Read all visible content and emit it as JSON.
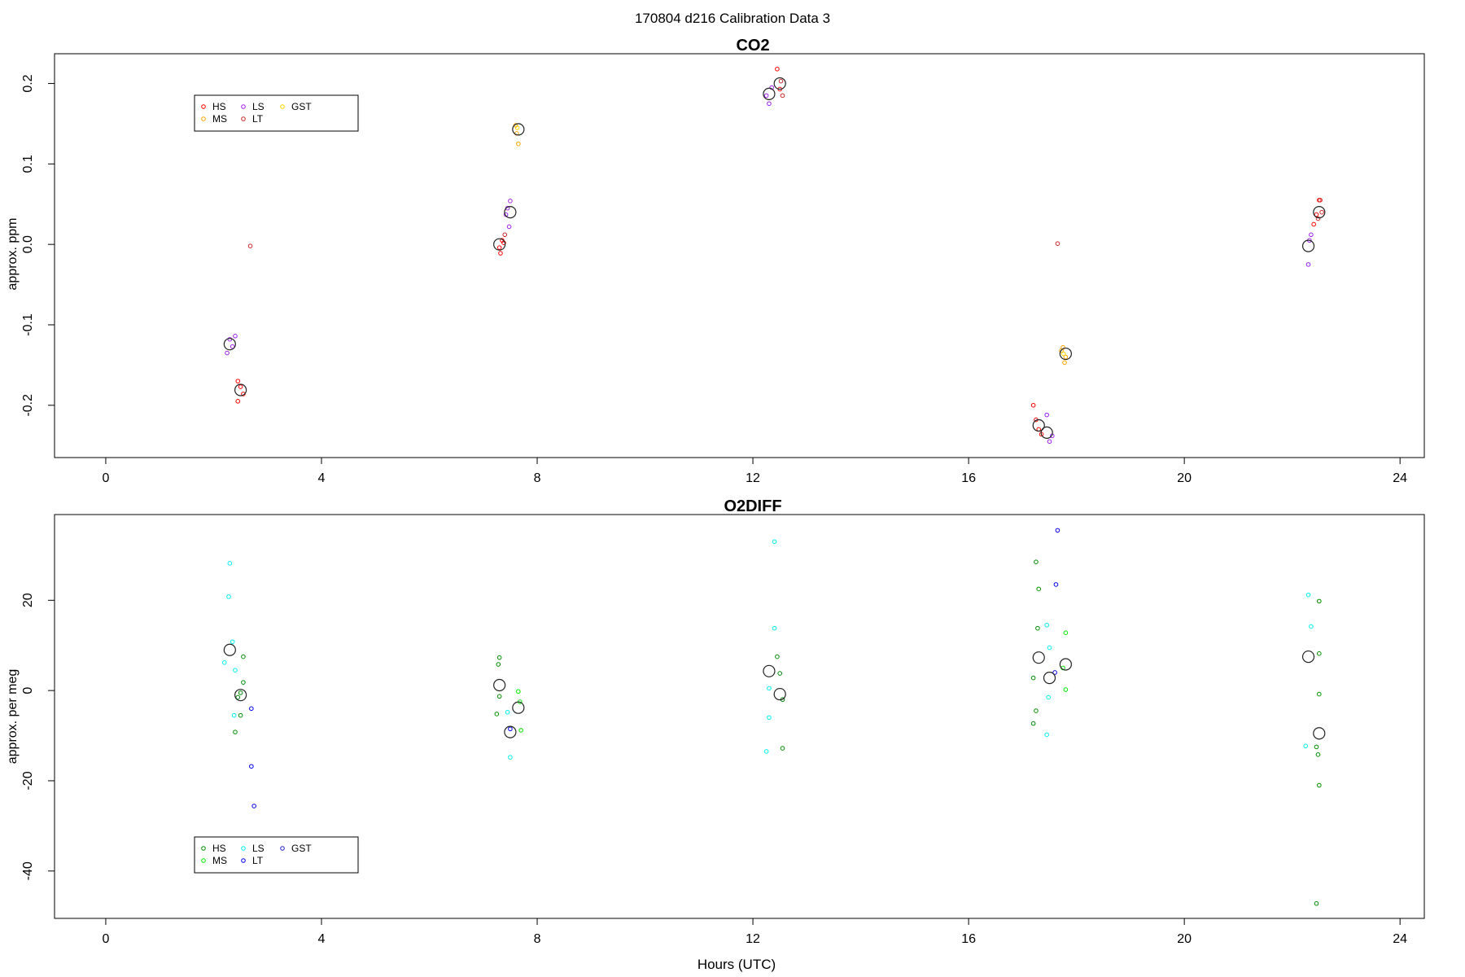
{
  "figure": {
    "title": "170804   d216   Calibration Data 3",
    "xlabel": "Hours (UTC)"
  },
  "chart_data": [
    {
      "type": "scatter",
      "title": "CO2",
      "xlabel": "",
      "ylabel": "approx. ppm",
      "xlim": [
        -0.95,
        24.45
      ],
      "ylim": [
        -0.265,
        0.237
      ],
      "xticks": [
        0,
        4,
        8,
        12,
        16,
        20,
        24
      ],
      "yticks": [
        -0.2,
        -0.1,
        0.0,
        0.1,
        0.2
      ],
      "ytick_labels": [
        "-0.2",
        "-0.1",
        "0.0",
        "0.1",
        "0.2"
      ],
      "legend_position": "top-left",
      "series": [
        {
          "name": "HS",
          "color": "#ff0000",
          "points": [
            [
              2.45,
              -0.17
            ],
            [
              2.5,
              -0.177
            ],
            [
              2.55,
              -0.186
            ],
            [
              2.45,
              -0.195
            ],
            [
              7.3,
              -0.004
            ],
            [
              7.32,
              -0.011
            ],
            [
              7.35,
              0.005
            ],
            [
              7.38,
              0.002
            ],
            [
              17.2,
              -0.2
            ],
            [
              17.25,
              -0.218
            ],
            [
              17.3,
              -0.23
            ],
            [
              17.35,
              -0.236
            ],
            [
              12.45,
              0.218
            ],
            [
              12.5,
              0.193
            ],
            [
              22.5,
              0.055
            ],
            [
              22.45,
              0.037
            ],
            [
              22.4,
              0.025
            ]
          ]
        },
        {
          "name": "MS",
          "color": "#ffa500",
          "points": [
            [
              7.6,
              0.148
            ],
            [
              7.62,
              0.138
            ],
            [
              7.65,
              0.125
            ],
            [
              17.75,
              -0.128
            ],
            [
              17.8,
              -0.14
            ],
            [
              17.78,
              -0.147
            ],
            [
              17.72,
              -0.132
            ]
          ]
        },
        {
          "name": "LS",
          "color": "#a020f0",
          "points": [
            [
              2.3,
              -0.118
            ],
            [
              2.35,
              -0.127
            ],
            [
              2.4,
              -0.114
            ],
            [
              2.25,
              -0.135
            ],
            [
              7.45,
              0.045
            ],
            [
              7.5,
              0.054
            ],
            [
              7.48,
              0.022
            ],
            [
              7.42,
              0.037
            ],
            [
              12.25,
              0.185
            ],
            [
              12.3,
              0.175
            ],
            [
              12.35,
              0.195
            ],
            [
              17.45,
              -0.212
            ],
            [
              17.5,
              -0.245
            ],
            [
              17.55,
              -0.238
            ],
            [
              22.3,
              -0.025
            ],
            [
              22.35,
              0.012
            ],
            [
              22.32,
              0.005
            ]
          ]
        },
        {
          "name": "LT",
          "color": "#cd2626",
          "points": [
            [
              2.68,
              -0.002
            ],
            [
              7.4,
              0.012
            ],
            [
              12.55,
              0.185
            ],
            [
              12.52,
              0.203
            ],
            [
              17.65,
              0.001
            ],
            [
              22.55,
              0.04
            ],
            [
              22.52,
              0.055
            ],
            [
              22.48,
              0.032
            ]
          ]
        },
        {
          "name": "GST",
          "color": "#ffd700",
          "points": [
            [
              7.63,
              0.145
            ],
            [
              17.76,
              -0.136
            ]
          ]
        }
      ],
      "means": [
        [
          2.3,
          -0.124
        ],
        [
          2.5,
          -0.181
        ],
        [
          7.3,
          0.0
        ],
        [
          7.5,
          0.04
        ],
        [
          7.65,
          0.143
        ],
        [
          12.3,
          0.187
        ],
        [
          12.5,
          0.2
        ],
        [
          17.3,
          -0.225
        ],
        [
          17.45,
          -0.234
        ],
        [
          17.8,
          -0.136
        ],
        [
          22.3,
          -0.002
        ],
        [
          22.5,
          0.04
        ]
      ]
    },
    {
      "type": "scatter",
      "title": "O2DIFF",
      "xlabel": "Hours (UTC)",
      "ylabel": "approx. per meg",
      "xlim": [
        -0.95,
        24.45
      ],
      "ylim": [
        -50.5,
        39
      ],
      "xticks": [
        0,
        4,
        8,
        12,
        16,
        20,
        24
      ],
      "yticks": [
        -40,
        -20,
        0,
        20
      ],
      "ytick_labels": [
        "-40",
        "-20",
        "0",
        "20"
      ],
      "legend_position": "bottom-left",
      "series": [
        {
          "name": "HS",
          "color": "#008b00",
          "points": [
            [
              2.55,
              7.5
            ],
            [
              2.55,
              1.8
            ],
            [
              2.5,
              -0.5
            ],
            [
              2.45,
              -1.5
            ],
            [
              2.4,
              -9.2
            ],
            [
              2.5,
              -5.5
            ],
            [
              7.3,
              7.3
            ],
            [
              7.28,
              5.8
            ],
            [
              7.3,
              -1.3
            ],
            [
              7.25,
              -5.2
            ],
            [
              12.45,
              7.5
            ],
            [
              12.5,
              3.8
            ],
            [
              12.55,
              -2.0
            ],
            [
              12.55,
              -12.8
            ],
            [
              17.25,
              28.5
            ],
            [
              17.3,
              22.5
            ],
            [
              17.28,
              13.8
            ],
            [
              17.2,
              2.8
            ],
            [
              17.25,
              -4.5
            ],
            [
              17.2,
              -7.3
            ],
            [
              22.5,
              19.8
            ],
            [
              22.5,
              8.2
            ],
            [
              22.5,
              -0.8
            ],
            [
              22.45,
              -12.5
            ],
            [
              22.48,
              -14.2
            ],
            [
              22.5,
              -21.0
            ],
            [
              22.45,
              -47.2
            ]
          ]
        },
        {
          "name": "MS",
          "color": "#00ee00",
          "points": [
            [
              7.65,
              -0.2
            ],
            [
              7.7,
              -8.8
            ],
            [
              7.68,
              -2.5
            ],
            [
              17.8,
              12.8
            ],
            [
              17.8,
              0.2
            ],
            [
              17.75,
              5.0
            ]
          ]
        },
        {
          "name": "LS",
          "color": "#00eeee",
          "points": [
            [
              2.3,
              28.2
            ],
            [
              2.28,
              20.8
            ],
            [
              2.35,
              10.8
            ],
            [
              2.2,
              6.2
            ],
            [
              2.4,
              4.5
            ],
            [
              2.38,
              -5.5
            ],
            [
              7.45,
              -4.8
            ],
            [
              7.5,
              -14.8
            ],
            [
              12.4,
              33.0
            ],
            [
              12.4,
              13.8
            ],
            [
              12.3,
              0.5
            ],
            [
              12.3,
              -6.0
            ],
            [
              12.25,
              -13.5
            ],
            [
              17.45,
              14.5
            ],
            [
              17.5,
              9.5
            ],
            [
              17.48,
              -1.5
            ],
            [
              17.45,
              -9.8
            ],
            [
              22.3,
              21.2
            ],
            [
              22.35,
              14.2
            ],
            [
              22.25,
              -12.3
            ]
          ]
        },
        {
          "name": "LT",
          "color": "#0000ee",
          "points": [
            [
              2.7,
              -4.0
            ],
            [
              2.7,
              -16.8
            ],
            [
              2.75,
              -25.6
            ],
            [
              7.5,
              -8.5
            ],
            [
              17.65,
              35.5
            ],
            [
              17.62,
              23.5
            ],
            [
              17.6,
              4.0
            ]
          ]
        },
        {
          "name": "GST",
          "color": "#2222cc",
          "points": []
        }
      ],
      "means": [
        [
          2.3,
          9.0
        ],
        [
          2.5,
          -1.0
        ],
        [
          7.3,
          1.2
        ],
        [
          7.5,
          -9.2
        ],
        [
          7.65,
          -3.8
        ],
        [
          12.3,
          4.3
        ],
        [
          12.5,
          -0.8
        ],
        [
          17.3,
          7.3
        ],
        [
          17.5,
          2.8
        ],
        [
          17.8,
          5.8
        ],
        [
          22.3,
          7.5
        ],
        [
          22.5,
          -9.5
        ]
      ]
    }
  ]
}
